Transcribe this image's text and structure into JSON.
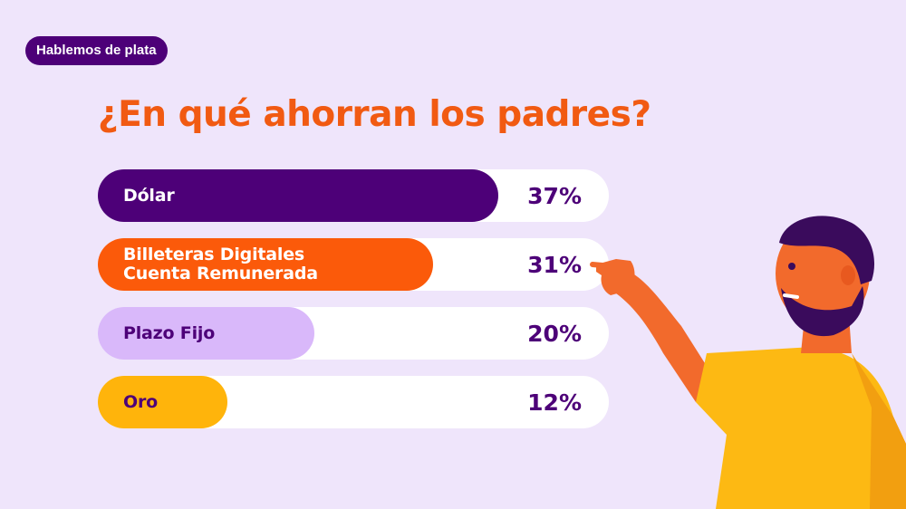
{
  "header": {
    "tag_label": "Hablemos de plata",
    "title": "¿En qué ahorran los padres?"
  },
  "chart_data": {
    "type": "bar",
    "orientation": "horizontal",
    "categories": [
      "Dólar",
      "Billeteras Digitales\nCuenta Remunerada",
      "Plazo Fijo",
      "Oro"
    ],
    "values": [
      37,
      31,
      20,
      12
    ],
    "value_labels": [
      "37%",
      "31%",
      "20%",
      "12%"
    ],
    "unit": "%",
    "colors": [
      "#4d0078",
      "#fb5a0a",
      "#d9b8fa",
      "#ffb40b"
    ],
    "label_colors": [
      "#ffffff",
      "#ffffff",
      "#4d0078",
      "#4d0078"
    ],
    "title": "¿En qué ahorran los padres?",
    "xlim": [
      0,
      37
    ],
    "grid": false
  },
  "illustration": {
    "icon": "man-pointing-icon"
  }
}
